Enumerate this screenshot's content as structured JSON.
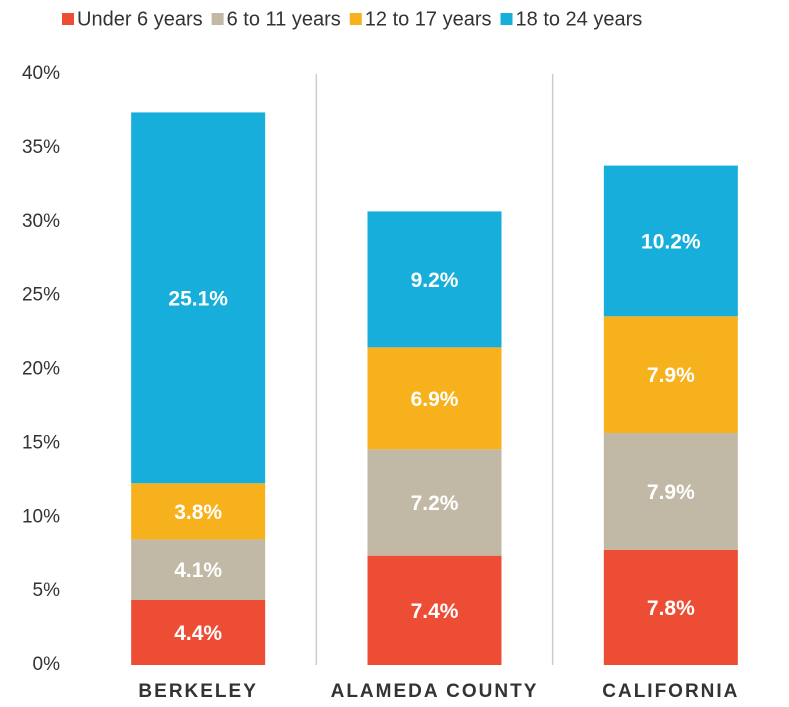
{
  "chart_data": {
    "type": "stacked_bar",
    "categories": [
      "BERKELEY",
      "ALAMEDA COUNTY",
      "CALIFORNIA"
    ],
    "series": [
      {
        "name": "Under 6 years",
        "color": "#ee4d35",
        "values": [
          4.4,
          7.4,
          7.8
        ],
        "value_labels": [
          "4.4%",
          "7.4%",
          "7.8%"
        ]
      },
      {
        "name": "6 to 11 years",
        "color": "#c2b8a6",
        "values": [
          4.1,
          7.2,
          7.9
        ],
        "value_labels": [
          "4.1%",
          "7.2%",
          "7.9%"
        ]
      },
      {
        "name": "12 to 17 years",
        "color": "#f7b11d",
        "values": [
          3.8,
          6.9,
          7.9
        ],
        "value_labels": [
          "3.8%",
          "6.9%",
          "7.9%"
        ]
      },
      {
        "name": "18 to 24 years",
        "color": "#18aedb",
        "values": [
          25.1,
          9.2,
          10.2
        ],
        "value_labels": [
          "25.1%",
          "9.2%",
          "10.2%"
        ]
      }
    ],
    "ylim": [
      0,
      40
    ],
    "yticks": [
      {
        "value": 0,
        "label": "0%"
      },
      {
        "value": 5,
        "label": "5%"
      },
      {
        "value": 10,
        "label": "10%"
      },
      {
        "value": 15,
        "label": "15%"
      },
      {
        "value": 20,
        "label": "20%"
      },
      {
        "value": 25,
        "label": "25%"
      },
      {
        "value": 30,
        "label": "30%"
      },
      {
        "value": 35,
        "label": "35%"
      },
      {
        "value": 40,
        "label": "40%"
      }
    ],
    "legend": "top"
  }
}
